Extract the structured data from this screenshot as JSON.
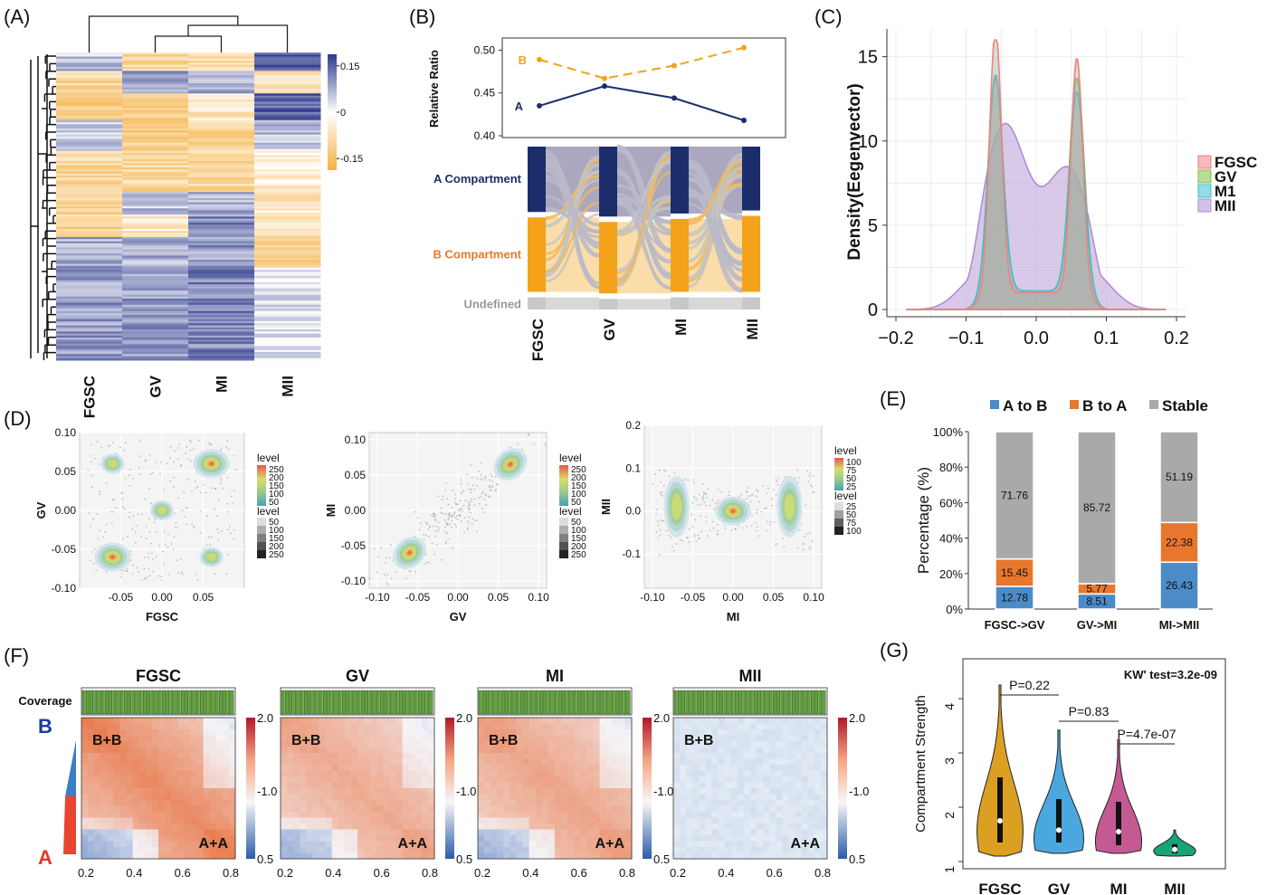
{
  "panels": {
    "A": {
      "label": "(A)"
    },
    "B": {
      "label": "(B)"
    },
    "C": {
      "label": "(C)"
    },
    "D": {
      "label": "(D)"
    },
    "E": {
      "label": "(E)"
    },
    "F": {
      "label": "(F)"
    },
    "G": {
      "label": "(G)"
    }
  },
  "colors": {
    "A": "#1b2d6b",
    "B": "#f3a21a",
    "undefined": "#c8c8c8",
    "A_to_B": "#4b8bc8",
    "B_to_A": "#e8772e",
    "Stable": "#a9a9a9",
    "FGSC": "#f08080",
    "GV": "#7fbf3f",
    "MI": "#3bbfcf",
    "MII": "#b08cd6",
    "heat_high": "#2e3a8c",
    "heat_low": "#f5b041",
    "violin_FGSC": "#dba021",
    "violin_GV": "#4aa8df",
    "violin_MI": "#c55a93",
    "violin_MII": "#1aa37a"
  },
  "chart_data": [
    {
      "panel": "A",
      "type": "heatmap",
      "columns": [
        "FGSC",
        "GV",
        "MI",
        "MII"
      ],
      "colorbar_ticks": [
        "0.15",
        "0",
        "-0.15"
      ],
      "colorbar_range": [
        -0.15,
        0.15
      ]
    },
    {
      "panel": "B",
      "type": "line",
      "categories": [
        "FGSC",
        "GV",
        "MI",
        "MII"
      ],
      "ylabel": "Relative Ratio",
      "yticks": [
        "0.50",
        "0.45",
        "0.40"
      ],
      "ylim": [
        0.4,
        0.51
      ],
      "series": [
        {
          "name": "A",
          "values": [
            0.435,
            0.458,
            0.444,
            0.418
          ]
        },
        {
          "name": "B",
          "values": [
            0.489,
            0.467,
            0.482,
            0.503
          ]
        }
      ],
      "alluvial_labels": [
        "A Compartment",
        "B Compartment",
        "Undefined"
      ],
      "alluvial_fractions": {
        "A": [
          0.43,
          0.46,
          0.44,
          0.42
        ],
        "B": [
          0.49,
          0.47,
          0.48,
          0.5
        ],
        "Undefined": [
          0.08,
          0.07,
          0.08,
          0.08
        ]
      }
    },
    {
      "panel": "C",
      "type": "area",
      "ylabel": "Density(Eegenvector)",
      "xticks": [
        "-0.2",
        "-0.1",
        "0.0",
        "0.1",
        "0.2"
      ],
      "yticks": [
        "0",
        "5",
        "10",
        "15"
      ],
      "xlim": [
        -0.2,
        0.2
      ],
      "ylim": [
        0,
        16
      ],
      "legend": [
        "FGSC",
        "GV",
        "M1",
        "MII"
      ],
      "series": [
        {
          "name": "FGSC",
          "peaks": [
            {
              "mu": -0.058,
              "sd": 0.0085,
              "h": 15.8
            },
            {
              "mu": 0.058,
              "sd": 0.0085,
              "h": 14.0
            }
          ],
          "base": 1.0
        },
        {
          "name": "GV",
          "peaks": [
            {
              "mu": -0.058,
              "sd": 0.0105,
              "h": 12.7
            },
            {
              "mu": 0.058,
              "sd": 0.0105,
              "h": 12.7
            }
          ],
          "base": 1.1
        },
        {
          "name": "M1",
          "peaks": [
            {
              "mu": -0.058,
              "sd": 0.0105,
              "h": 12.9
            },
            {
              "mu": 0.058,
              "sd": 0.0105,
              "h": 11.9
            }
          ],
          "base": 1.1
        },
        {
          "name": "MII",
          "peaks": [
            {
              "mu": -0.045,
              "sd": 0.03,
              "h": 7.7
            },
            {
              "mu": 0.045,
              "sd": 0.03,
              "h": 5.1
            }
          ],
          "base": 3.3
        }
      ]
    },
    {
      "panel": "D1",
      "type": "scatter",
      "xlabel": "FGSC",
      "ylabel": "GV",
      "xticks": [
        "-0.05",
        "0.00",
        "0.05"
      ],
      "yticks": [
        "0.10",
        "0.05",
        "0.00",
        "-0.05",
        "-0.10"
      ],
      "xlim": [
        -0.1,
        0.1
      ],
      "ylim": [
        -0.1,
        0.1
      ],
      "legend_title_1": "level",
      "legend_values_1": [
        "250",
        "200",
        "150",
        "100",
        "50"
      ],
      "legend_title_2": "level",
      "legend_values_2": [
        "50",
        "100",
        "150",
        "200",
        "250"
      ],
      "clusters": [
        {
          "x": -0.06,
          "y": -0.06
        },
        {
          "x": 0.06,
          "y": 0.06
        },
        {
          "x": -0.06,
          "y": 0.06
        },
        {
          "x": 0.06,
          "y": -0.06
        },
        {
          "x": 0.0,
          "y": 0.0
        }
      ]
    },
    {
      "panel": "D2",
      "type": "scatter",
      "xlabel": "GV",
      "ylabel": "MI",
      "xticks": [
        "-0.10",
        "-0.05",
        "0.00",
        "0.05",
        "0.10"
      ],
      "yticks": [
        "0.10",
        "0.05",
        "0.00",
        "-0.05",
        "-0.10"
      ],
      "xlim": [
        -0.11,
        0.11
      ],
      "ylim": [
        -0.11,
        0.11
      ],
      "legend_title_1": "level",
      "legend_values_1": [
        "250",
        "200",
        "150",
        "100",
        "50"
      ],
      "legend_title_2": "level",
      "legend_values_2": [
        "50",
        "100",
        "150",
        "200",
        "250"
      ],
      "clusters": [
        {
          "x": -0.06,
          "y": -0.06
        },
        {
          "x": 0.065,
          "y": 0.065
        }
      ]
    },
    {
      "panel": "D3",
      "type": "scatter",
      "xlabel": "MI",
      "ylabel": "MII",
      "xticks": [
        "-0.10",
        "-0.05",
        "0.00",
        "0.05",
        "0.10"
      ],
      "yticks": [
        "0.2",
        "0.1",
        "0.0",
        "-0.1"
      ],
      "xlim": [
        -0.11,
        0.11
      ],
      "ylim": [
        -0.18,
        0.2
      ],
      "legend_title_1": "level",
      "legend_values_1": [
        "100",
        "75",
        "50",
        "25"
      ],
      "legend_title_2": "level",
      "legend_values_2": [
        "25",
        "50",
        "75",
        "100"
      ],
      "clusters": [
        {
          "x": 0.0,
          "y": 0.0
        },
        {
          "x": -0.07,
          "y": 0.01
        },
        {
          "x": 0.07,
          "y": 0.01
        }
      ]
    },
    {
      "panel": "E",
      "type": "bar",
      "ylabel": "Percentage (%)",
      "categories": [
        "FGSC->GV",
        "GV->MI",
        "MI->MII"
      ],
      "yticks": [
        "100%",
        "80%",
        "60%",
        "40%",
        "20%",
        "0%"
      ],
      "ylim": [
        0,
        100
      ],
      "legend": [
        "A to B",
        "B to A",
        "Stable"
      ],
      "series": [
        {
          "name": "A to B",
          "values": [
            12.78,
            8.51,
            26.43
          ]
        },
        {
          "name": "B to A",
          "values": [
            15.45,
            5.77,
            22.38
          ]
        },
        {
          "name": "Stable",
          "values": [
            71.76,
            85.72,
            51.19
          ]
        }
      ]
    },
    {
      "panel": "F",
      "type": "heatmap",
      "row_label": "Coverage",
      "side_labels": [
        "B",
        "A"
      ],
      "maps": [
        {
          "title": "FGSC",
          "strength": 1.0
        },
        {
          "title": "GV",
          "strength": 0.7
        },
        {
          "title": "MI",
          "strength": 0.75
        },
        {
          "title": "MII",
          "strength": 0.15
        }
      ],
      "corner_labels": [
        "B+B",
        "A+A"
      ],
      "xticks": [
        "0.2",
        "0.4",
        "0.6",
        "0.8"
      ],
      "colorbar_ticks": [
        "2.0",
        "1.0",
        "0.5"
      ]
    },
    {
      "panel": "G",
      "type": "violin",
      "ylabel": "Compartment Strength",
      "categories": [
        "FGSC",
        "GV",
        "MI",
        "MII"
      ],
      "yticks": [
        "4",
        "3",
        "2",
        "1"
      ],
      "ylim": [
        1,
        4.6
      ],
      "annotation": "KW' test=3.2e-09",
      "comparisons": [
        "P=0.22",
        "P=0.83",
        "P=4.7e-07"
      ],
      "violins": [
        {
          "name": "FGSC",
          "min": 1.1,
          "max": 4.25,
          "median": 1.75,
          "q1": 1.35,
          "q3": 2.55,
          "mode": 1.6
        },
        {
          "name": "GV",
          "min": 1.15,
          "max": 3.42,
          "median": 1.58,
          "q1": 1.35,
          "q3": 2.15,
          "mode": 1.45
        },
        {
          "name": "MI",
          "min": 1.15,
          "max": 3.25,
          "median": 1.55,
          "q1": 1.3,
          "q3": 2.1,
          "mode": 1.4
        },
        {
          "name": "MII",
          "min": 1.1,
          "max": 1.58,
          "median": 1.22,
          "q1": 1.15,
          "q3": 1.32,
          "mode": 1.2
        }
      ]
    }
  ]
}
